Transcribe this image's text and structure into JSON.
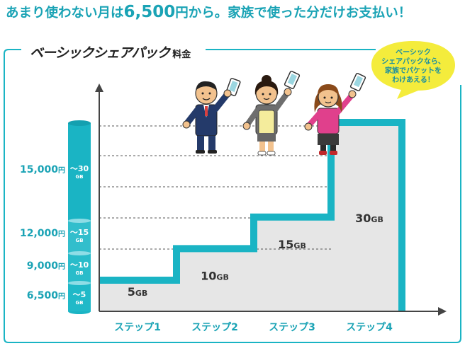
{
  "headline": {
    "pre": "あまり使わない月は",
    "price": "6,500",
    "post": "円から。家族で使った分だけお支払い！"
  },
  "section": {
    "title": "ベーシックシェアパック",
    "sub": "料金"
  },
  "bubble": "ベーシック\nシェアパックなら、\n家族でパケットを\nわけあえる！",
  "chart_data": {
    "type": "step",
    "categories": [
      "ステップ1",
      "ステップ2",
      "ステップ3",
      "ステップ4"
    ],
    "data_gb": [
      5,
      10,
      15,
      30
    ],
    "data_labels": [
      {
        "num": "5",
        "unit": "GB"
      },
      {
        "num": "10",
        "unit": "GB"
      },
      {
        "num": "15",
        "unit": "GB"
      },
      {
        "num": "30",
        "unit": "GB"
      }
    ],
    "price_yen": [
      6500,
      9000,
      12000,
      15000
    ],
    "price_labels": [
      {
        "num": "6,500",
        "unit": "円",
        "range": "～5",
        "unit_gb": "GB"
      },
      {
        "num": "9,000",
        "unit": "円",
        "range": "～10",
        "unit_gb": "GB"
      },
      {
        "num": "12,000",
        "unit": "円",
        "range": "～15",
        "unit_gb": "GB"
      },
      {
        "num": "15,000",
        "unit": "円",
        "range": "～30",
        "unit_gb": "GB"
      }
    ],
    "colors": {
      "accent": "#1ab4c4",
      "bar": "#e6e6e6",
      "axis": "#444444",
      "text": "#1aa3b5"
    }
  }
}
